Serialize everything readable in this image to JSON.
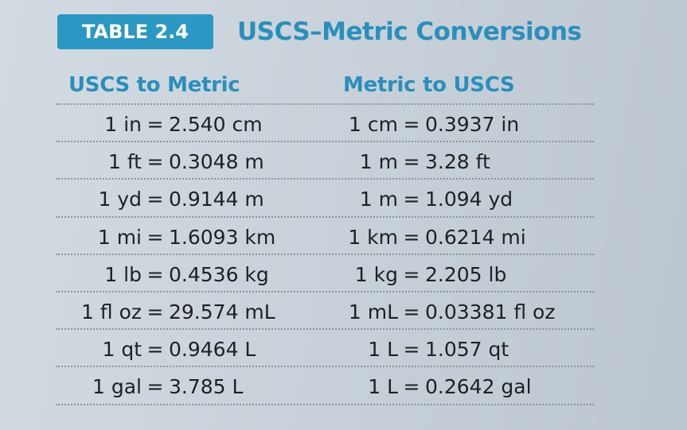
{
  "badge": "TABLE 2.4",
  "title": "USCS–Metric Conversions",
  "columns": {
    "left": "USCS to Metric",
    "right": "Metric to USCS"
  },
  "rows": [
    {
      "left": {
        "lhs": "1 in",
        "rhs": "2.540 cm"
      },
      "right": {
        "lhs": "1 cm",
        "rhs": "0.3937 in"
      }
    },
    {
      "left": {
        "lhs": "1 ft",
        "rhs": "0.3048 m"
      },
      "right": {
        "lhs": "1 m",
        "rhs": "3.28 ft"
      }
    },
    {
      "left": {
        "lhs": "1 yd",
        "rhs": "0.9144 m"
      },
      "right": {
        "lhs": "1 m",
        "rhs": "1.094 yd"
      }
    },
    {
      "left": {
        "lhs": "1 mi",
        "rhs": "1.6093 km"
      },
      "right": {
        "lhs": "1 km",
        "rhs": "0.6214 mi"
      }
    },
    {
      "left": {
        "lhs": "1 lb",
        "rhs": "0.4536 kg"
      },
      "right": {
        "lhs": "1 kg",
        "rhs": "2.205 lb"
      }
    },
    {
      "left": {
        "lhs": "1 fl oz",
        "rhs": "29.574 mL"
      },
      "right": {
        "lhs": "1 mL",
        "rhs": "0.03381 fl oz"
      }
    },
    {
      "left": {
        "lhs": "1 qt",
        "rhs": "0.9464 L"
      },
      "right": {
        "lhs": "1 L",
        "rhs": "1.057 qt"
      }
    },
    {
      "left": {
        "lhs": "1 gal",
        "rhs": "3.785 L"
      },
      "right": {
        "lhs": "1 L",
        "rhs": "0.2642 gal"
      }
    }
  ],
  "equals_sign": "="
}
